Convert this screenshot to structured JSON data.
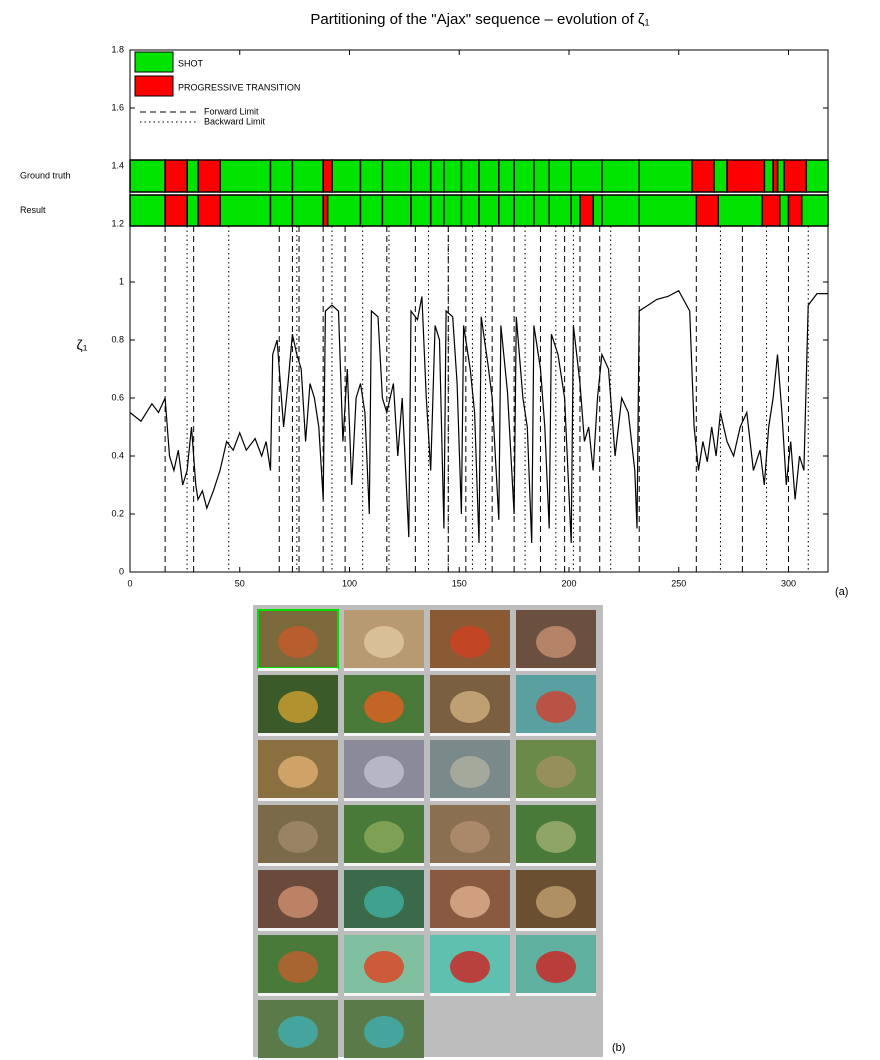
{
  "chart_data": {
    "type": "line",
    "title": "Partitioning of the \"Ajax\" sequence – evolution of ζ₁",
    "ylabel": "ζ₁",
    "panel_label": "(a)",
    "xlim": [
      0,
      318
    ],
    "xticks": [
      0,
      50,
      100,
      150,
      200,
      250,
      300
    ],
    "ylim": [
      0,
      1.8
    ],
    "yticks": [
      0,
      0.2,
      0.4,
      0.6,
      0.8,
      1,
      1.2,
      1.4,
      1.6,
      1.8
    ],
    "legend": [
      {
        "name": "SHOT",
        "color": "#00e400"
      },
      {
        "name": "PROGRESSIVE TRANSITION",
        "color": "#ff0000"
      }
    ],
    "bands": [
      {
        "label": "Ground truth",
        "shots": [
          [
            0,
            16
          ],
          [
            26,
            31
          ],
          [
            41,
            64
          ],
          [
            64,
            74
          ],
          [
            74,
            88
          ],
          [
            92,
            105
          ],
          [
            105,
            115
          ],
          [
            115,
            128
          ],
          [
            128,
            137
          ],
          [
            137,
            143
          ],
          [
            143,
            151
          ],
          [
            151,
            159
          ],
          [
            159,
            168
          ],
          [
            168,
            175
          ],
          [
            175,
            184
          ],
          [
            184,
            191
          ],
          [
            191,
            201
          ],
          [
            201,
            215
          ],
          [
            215,
            232
          ],
          [
            232,
            256
          ],
          [
            266,
            272
          ],
          [
            289,
            293
          ],
          [
            295,
            298
          ],
          [
            308,
            318
          ]
        ],
        "transitions": [
          [
            16,
            26
          ],
          [
            31,
            41
          ],
          [
            88,
            92
          ],
          [
            256,
            266
          ],
          [
            272,
            289
          ],
          [
            293,
            295
          ],
          [
            298,
            308
          ]
        ]
      },
      {
        "label": "Result",
        "shots": [
          [
            0,
            16
          ],
          [
            26,
            31
          ],
          [
            41,
            64
          ],
          [
            64,
            74
          ],
          [
            74,
            88
          ],
          [
            90,
            105
          ],
          [
            105,
            115
          ],
          [
            115,
            128
          ],
          [
            128,
            137
          ],
          [
            137,
            143
          ],
          [
            143,
            151
          ],
          [
            151,
            159
          ],
          [
            159,
            168
          ],
          [
            168,
            175
          ],
          [
            175,
            184
          ],
          [
            184,
            191
          ],
          [
            191,
            201
          ],
          [
            201,
            205
          ],
          [
            211,
            215
          ],
          [
            215,
            232
          ],
          [
            232,
            258
          ],
          [
            268,
            288
          ],
          [
            296,
            300
          ],
          [
            306,
            318
          ]
        ],
        "transitions": [
          [
            16,
            26
          ],
          [
            31,
            41
          ],
          [
            88,
            90
          ],
          [
            205,
            211
          ],
          [
            258,
            268
          ],
          [
            288,
            296
          ],
          [
            300,
            306
          ]
        ]
      }
    ],
    "limits": [
      {
        "name": "Forward Limit",
        "style": "dashed",
        "x": [
          16,
          29,
          68,
          74,
          77,
          88,
          98,
          117,
          130,
          145,
          153,
          165,
          175,
          187,
          198,
          205,
          214,
          232,
          258,
          279,
          300
        ]
      },
      {
        "name": "Backward Limit",
        "style": "dotted",
        "x": [
          26,
          45,
          76,
          92,
          106,
          118,
          136,
          145,
          156,
          162,
          180,
          194,
          202,
          219,
          269,
          290,
          309
        ]
      }
    ],
    "curve": {
      "x": [
        0,
        5,
        10,
        13,
        16,
        18,
        20,
        22,
        24,
        26,
        28,
        30,
        31,
        33,
        35,
        38,
        41,
        44,
        47,
        50,
        53,
        57,
        60,
        62,
        64,
        65,
        67,
        70,
        72,
        74,
        76,
        78,
        80,
        82,
        84,
        86,
        88,
        89,
        92,
        95,
        97,
        99,
        101,
        103,
        105,
        107,
        109,
        110,
        113,
        115,
        117,
        120,
        122,
        124,
        127,
        128,
        131,
        133,
        135,
        137,
        139,
        141,
        143,
        144,
        147,
        149,
        151,
        152,
        155,
        157,
        159,
        160,
        163,
        165,
        168,
        169,
        172,
        175,
        176,
        179,
        181,
        183,
        184,
        187,
        189,
        191,
        192,
        195,
        198,
        201,
        202,
        205,
        207,
        209,
        211,
        213,
        215,
        218,
        221,
        224,
        227,
        230,
        231,
        232,
        236,
        240,
        245,
        250,
        255,
        257,
        259,
        261,
        263,
        265,
        267,
        269,
        272,
        275,
        278,
        281,
        284,
        287,
        289,
        291,
        293,
        295,
        297,
        299,
        301,
        303,
        305,
        307,
        309,
        313,
        318
      ],
      "values": [
        0.55,
        0.52,
        0.58,
        0.55,
        0.6,
        0.4,
        0.35,
        0.42,
        0.3,
        0.35,
        0.5,
        0.3,
        0.25,
        0.28,
        0.22,
        0.28,
        0.35,
        0.45,
        0.42,
        0.48,
        0.42,
        0.46,
        0.4,
        0.45,
        0.35,
        0.75,
        0.8,
        0.5,
        0.65,
        0.82,
        0.75,
        0.7,
        0.45,
        0.65,
        0.6,
        0.5,
        0.25,
        0.9,
        0.92,
        0.9,
        0.45,
        0.7,
        0.3,
        0.6,
        0.65,
        0.55,
        0.2,
        0.9,
        0.88,
        0.6,
        0.55,
        0.65,
        0.4,
        0.6,
        0.12,
        0.9,
        0.87,
        0.95,
        0.6,
        0.35,
        0.85,
        0.8,
        0.15,
        0.9,
        0.88,
        0.65,
        0.2,
        0.85,
        0.7,
        0.55,
        0.1,
        0.88,
        0.72,
        0.6,
        0.18,
        0.85,
        0.62,
        0.2,
        0.88,
        0.6,
        0.5,
        0.1,
        0.85,
        0.7,
        0.5,
        0.15,
        0.82,
        0.75,
        0.6,
        0.1,
        0.85,
        0.65,
        0.45,
        0.5,
        0.35,
        0.6,
        0.75,
        0.7,
        0.4,
        0.6,
        0.55,
        0.35,
        0.15,
        0.9,
        0.92,
        0.94,
        0.95,
        0.97,
        0.9,
        0.5,
        0.35,
        0.45,
        0.38,
        0.5,
        0.4,
        0.55,
        0.45,
        0.4,
        0.5,
        0.55,
        0.35,
        0.42,
        0.3,
        0.5,
        0.6,
        0.75,
        0.55,
        0.3,
        0.45,
        0.25,
        0.4,
        0.35,
        0.92,
        0.96,
        0.96
      ]
    }
  },
  "thumbnails": {
    "label": "(b)"
  }
}
